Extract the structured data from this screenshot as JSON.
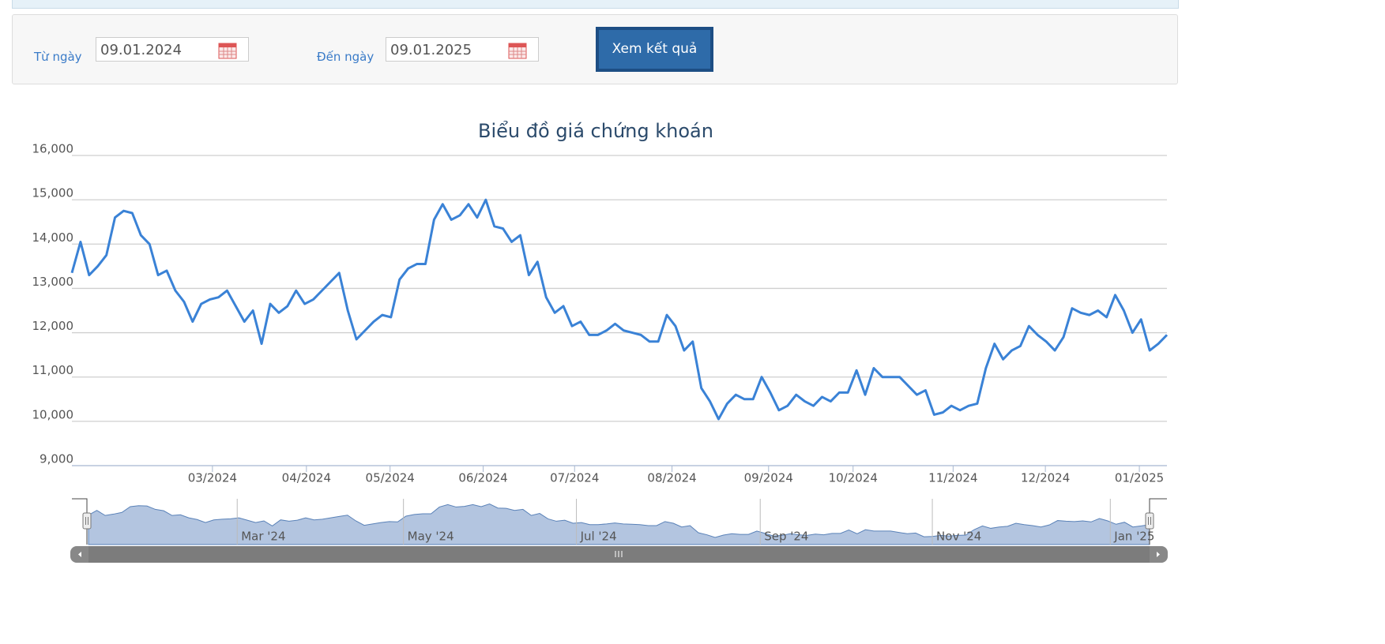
{
  "form": {
    "from_label": "Từ ngày",
    "from_value": "09.01.2024",
    "to_label": "Đến ngày",
    "to_value": "09.01.2025",
    "button": "Xem kết quả"
  },
  "chart_data": {
    "type": "line",
    "title": "Biểu đồ giá chứng khoán",
    "series": [
      {
        "color": "#3a82d6",
        "values": [
          13350,
          14050,
          13300,
          13500,
          13750,
          14600,
          14750,
          14700,
          14200,
          14000,
          13300,
          13400,
          12950,
          12700,
          12250,
          12650,
          12750,
          12800,
          12950,
          12600,
          12250,
          12500,
          11750,
          12650,
          12450,
          12600,
          12950,
          12650,
          12750,
          12950,
          13150,
          13350,
          12500,
          11850,
          12050,
          12250,
          12400,
          12350,
          13200,
          13450,
          13550,
          13550,
          14550,
          14900,
          14550,
          14650,
          14900,
          14600,
          15000,
          14400,
          14350,
          14050,
          14200,
          13300,
          13600,
          12800,
          12450,
          12600,
          12150,
          12250,
          11950,
          11950,
          12050,
          12200,
          12050,
          12000,
          11950,
          11800,
          11800,
          12400,
          12150,
          11600,
          11800,
          10750,
          10450,
          10050,
          10400,
          10600,
          10500,
          10500,
          11000,
          10650,
          10250,
          10350,
          10600,
          10450,
          10350,
          10550,
          10450,
          10650,
          10650,
          11150,
          10600,
          11200,
          11000,
          11000,
          11000,
          10800,
          10600,
          10700,
          10150,
          10200,
          10350,
          10250,
          10350,
          10400,
          11200,
          11750,
          11400,
          11600,
          11700,
          12150,
          11950,
          11800,
          11600,
          11900,
          12550,
          12450,
          12400,
          12500,
          12350,
          12850,
          12500,
          12000,
          12300,
          11600,
          11750,
          11950
        ]
      }
    ],
    "xlim": [
      0,
      127
    ],
    "xticks": [
      {
        "value": 16.3,
        "label": "03/2024"
      },
      {
        "value": 27.2,
        "label": "04/2024"
      },
      {
        "value": 36.9,
        "label": "05/2024"
      },
      {
        "value": 47.7,
        "label": "06/2024"
      },
      {
        "value": 58.3,
        "label": "07/2024"
      },
      {
        "value": 69.6,
        "label": "08/2024"
      },
      {
        "value": 80.8,
        "label": "09/2024"
      },
      {
        "value": 90.6,
        "label": "10/2024"
      },
      {
        "value": 102.2,
        "label": "11/2024"
      },
      {
        "value": 112.9,
        "label": "12/2024"
      },
      {
        "value": 123.8,
        "label": "01/2025"
      }
    ],
    "ylim": [
      9000,
      16000
    ],
    "yticks": [
      {
        "value": 9000,
        "label": "9,000"
      },
      {
        "value": 10000,
        "label": "10,000"
      },
      {
        "value": 11000,
        "label": "11,000"
      },
      {
        "value": 12000,
        "label": "12,000"
      },
      {
        "value": 13000,
        "label": "13,000"
      },
      {
        "value": 14000,
        "label": "14,000"
      },
      {
        "value": 15000,
        "label": "15,000"
      },
      {
        "value": 16000,
        "label": "16,000"
      }
    ],
    "grid": true,
    "navigator_xticks": [
      {
        "value": 17.8,
        "label": "Mar '24"
      },
      {
        "value": 37.7,
        "label": "May '24"
      },
      {
        "value": 58.4,
        "label": "Jul '24"
      },
      {
        "value": 80.4,
        "label": "Sep '24"
      },
      {
        "value": 101,
        "label": "Nov '24"
      },
      {
        "value": 122.3,
        "label": "Jan '25"
      }
    ]
  }
}
